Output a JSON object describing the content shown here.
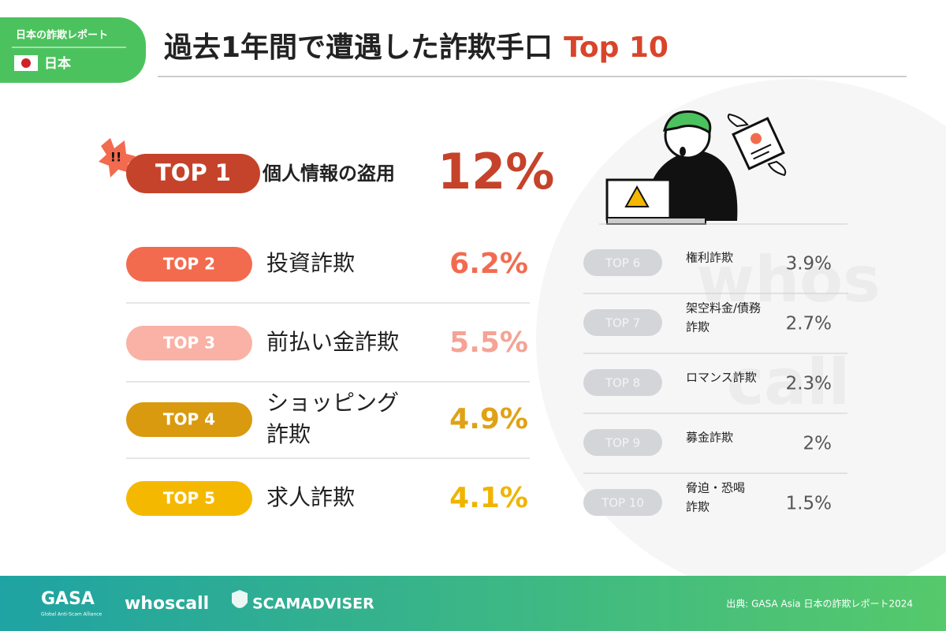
{
  "header": {
    "badge_title": "日本の詐欺レポート",
    "badge_country": "日本",
    "title": "過去1年間で遭遇した詐欺手口",
    "title_highlight": "Top 10"
  },
  "top1": {
    "rank": "TOP 1",
    "name": "個人情報の盗用",
    "value": "12%"
  },
  "left_items": [
    {
      "rank": "TOP 2",
      "name": [
        "投資詐欺"
      ],
      "value": "6.2%"
    },
    {
      "rank": "TOP 3",
      "name": [
        "前払い金詐欺"
      ],
      "value": "5.5%"
    },
    {
      "rank": "TOP 4",
      "name": [
        "ショッピング",
        "詐欺"
      ],
      "value": "4.9%"
    },
    {
      "rank": "TOP 5",
      "name": [
        "求人詐欺"
      ],
      "value": "4.1%"
    }
  ],
  "right_items": [
    {
      "rank": "TOP 6",
      "name": [
        "権利詐欺"
      ],
      "value": "3.9%"
    },
    {
      "rank": "TOP 7",
      "name": [
        "架空料金/債務",
        "詐欺"
      ],
      "value": "2.7%"
    },
    {
      "rank": "TOP 8",
      "name": [
        "ロマンス詐欺"
      ],
      "value": "2.3%"
    },
    {
      "rank": "TOP 9",
      "name": [
        "募金詐欺"
      ],
      "value": "2%"
    },
    {
      "rank": "TOP 10",
      "name": [
        "脅迫・恐喝",
        "詐欺"
      ],
      "value": "1.5%"
    }
  ],
  "watermark": [
    "whos",
    "call"
  ],
  "footer": {
    "logos": [
      "GASA",
      "Global Anti-Scam Alliance",
      "whoscall",
      "SCAMADVISER"
    ],
    "source": "出典: GASA Asia 日本の詐欺レポート2024"
  }
}
